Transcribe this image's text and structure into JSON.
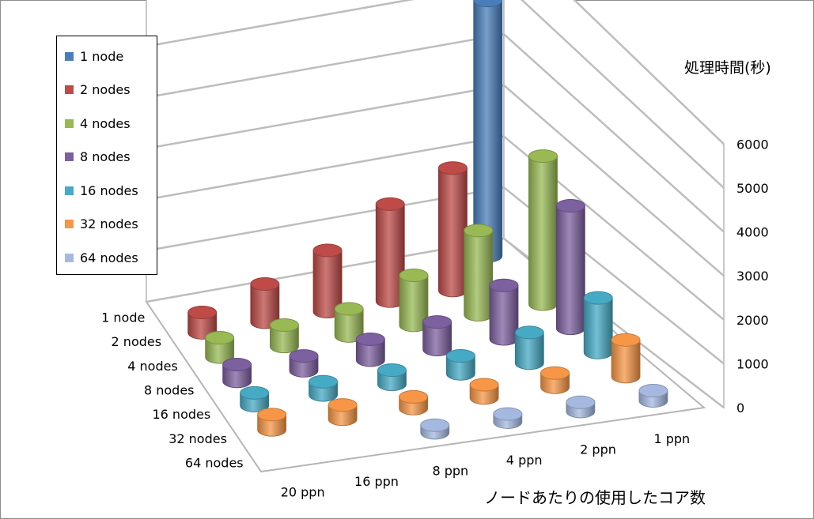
{
  "chart_data": {
    "type": "bar3d",
    "zlabel": "処理時間(秒)",
    "xlabel": "ノードあたりの使用したコア数",
    "ylabel": "",
    "x_categories": [
      "20 ppn",
      "16 ppn",
      "8 ppn",
      "4 ppn",
      "2 ppn",
      "1 ppn"
    ],
    "y_categories": [
      "1 node",
      "2 nodes",
      "4 nodes",
      "8 nodes",
      "16 nodes",
      "32 nodes",
      "64 nodes"
    ],
    "zlim": [
      0,
      6000
    ],
    "z_ticks": [
      "0",
      "1000",
      "2000",
      "3000",
      "4000",
      "5000",
      "6000"
    ],
    "series": [
      {
        "name": "1 node",
        "color": "#4a7ebb",
        "values": [
          null,
          null,
          null,
          null,
          null,
          5000
        ]
      },
      {
        "name": "2 nodes",
        "color": "#be4b48",
        "values": [
          400,
          750,
          1200,
          1900,
          2400,
          null
        ]
      },
      {
        "name": "4 nodes",
        "color": "#98b954",
        "values": [
          380,
          420,
          530,
          980,
          1650,
          2900
        ]
      },
      {
        "name": "8 nodes",
        "color": "#7d60a0",
        "values": [
          330,
          290,
          410,
          540,
          1050,
          2400
        ]
      },
      {
        "name": "16 nodes",
        "color": "#46aac5",
        "values": [
          250,
          260,
          280,
          350,
          600,
          1070
        ]
      },
      {
        "name": "32 nodes",
        "color": "#f79646",
        "values": [
          300,
          280,
          230,
          260,
          280,
          720
        ]
      },
      {
        "name": "64 nodes",
        "color": "#a5b9e0",
        "values": [
          null,
          null,
          150,
          160,
          180,
          200
        ]
      }
    ],
    "legend_position": "top-left",
    "grid": true
  }
}
